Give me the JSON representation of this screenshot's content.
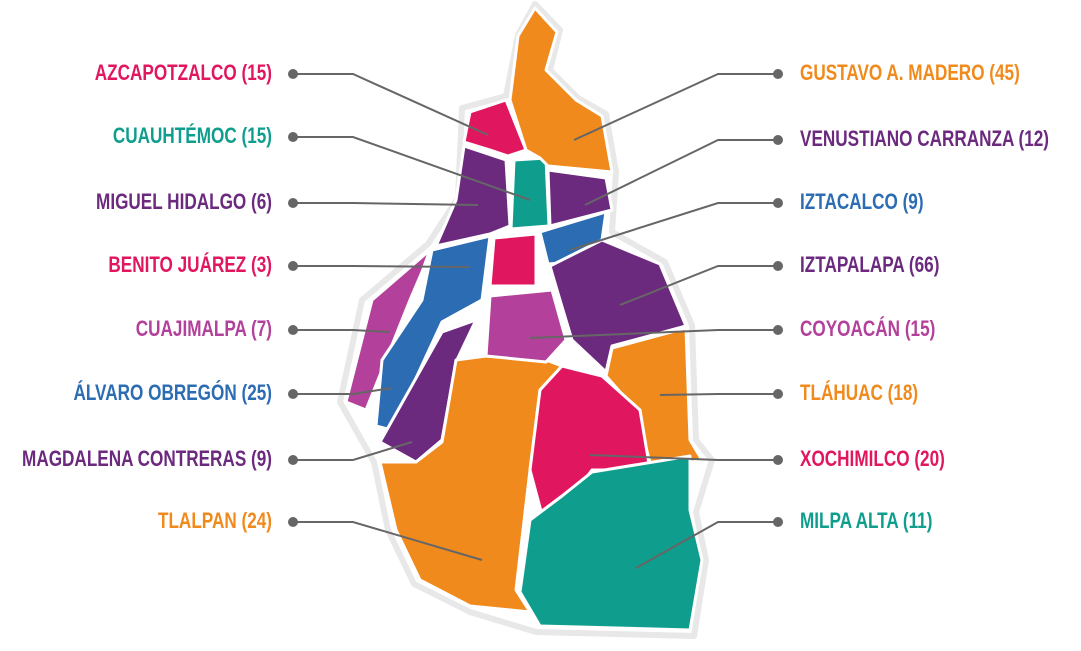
{
  "districts": [
    {
      "label": "AZCAPOTZALCO (15)",
      "color": "#e0175f",
      "side": "left"
    },
    {
      "label": "CUAUHTÉMOC (15)",
      "color": "#0f9e8e",
      "side": "left"
    },
    {
      "label": "MIGUEL HIDALGO (6)",
      "color": "#6c2a7f",
      "side": "left"
    },
    {
      "label": "BENITO JUÁREZ (3)",
      "color": "#e0175f",
      "side": "left"
    },
    {
      "label": "CUAJIMALPA (7)",
      "color": "#b3409b",
      "side": "left"
    },
    {
      "label": "ÁLVARO OBREGÓN (25)",
      "color": "#2b6cb3",
      "side": "left"
    },
    {
      "label": "MAGDALENA CONTRERAS (9)",
      "color": "#6c2a7f",
      "side": "left"
    },
    {
      "label": "TLALPAN (24)",
      "color": "#f08a1c",
      "side": "left"
    },
    {
      "label": "GUSTAVO A. MADERO (45)",
      "color": "#f08a1c",
      "side": "right"
    },
    {
      "label": "VENUSTIANO CARRANZA (12)",
      "color": "#6c2a7f",
      "side": "right"
    },
    {
      "label": "IZTACALCO (9)",
      "color": "#2b6cb3",
      "side": "right"
    },
    {
      "label": "IZTAPALAPA (66)",
      "color": "#6c2a7f",
      "side": "right"
    },
    {
      "label": "COYOACÁN (15)",
      "color": "#b3409b",
      "side": "right"
    },
    {
      "label": "TLÁHUAC (18)",
      "color": "#f08a1c",
      "side": "right"
    },
    {
      "label": "XOCHIMILCO (20)",
      "color": "#e0175f",
      "side": "right"
    },
    {
      "label": "MILPA ALTA (11)",
      "color": "#0f9e8e",
      "side": "right"
    }
  ]
}
